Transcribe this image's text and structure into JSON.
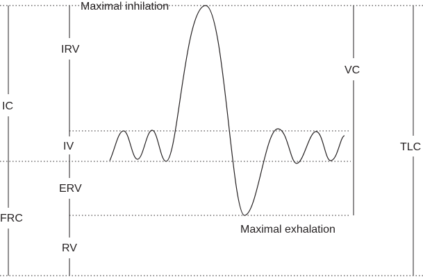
{
  "labels": {
    "maximal_inhalation": "Maximal inhilation",
    "maximal_exhalation": "Maximal exhalation",
    "irv": "IRV",
    "iv": "IV",
    "erv": "ERV",
    "rv": "RV",
    "ic": "IC",
    "frc": "FRC",
    "vc": "VC",
    "tlc": "TLC"
  }
}
